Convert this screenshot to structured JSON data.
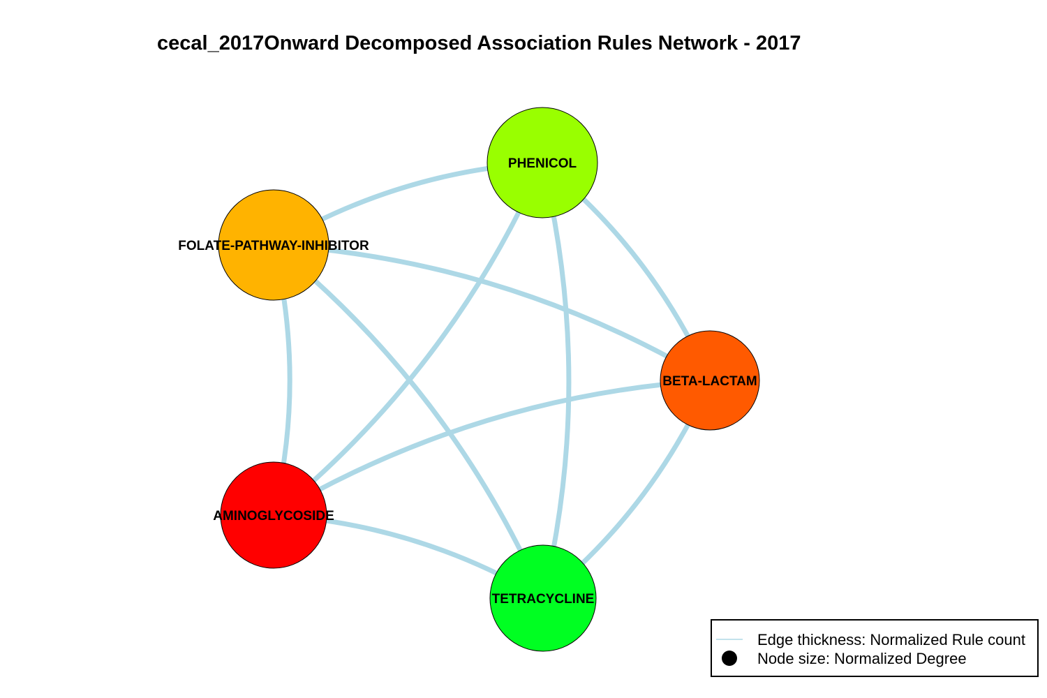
{
  "title": "cecal_2017Onward Decomposed Association Rules Network - 2017",
  "colors": {
    "edge": "#add8e6",
    "node_border": "#000000",
    "legend_border": "#000000"
  },
  "nodes": [
    {
      "id": "phenicol",
      "label": "PHENICOL",
      "color": "#99ff00"
    },
    {
      "id": "folate",
      "label": "FOLATE-PATHWAY-INHIBITOR",
      "color": "#ffb300"
    },
    {
      "id": "beta",
      "label": "BETA-LACTAM",
      "color": "#ff5a00"
    },
    {
      "id": "amino",
      "label": "AMINOGLYCOSIDE",
      "color": "#ff0000"
    },
    {
      "id": "tetra",
      "label": "TETRACYCLINE",
      "color": "#00ff22"
    }
  ],
  "edges": [
    {
      "from": "folate",
      "to": "phenicol"
    },
    {
      "from": "phenicol",
      "to": "beta"
    },
    {
      "from": "phenicol",
      "to": "tetra"
    },
    {
      "from": "phenicol",
      "to": "amino"
    },
    {
      "from": "folate",
      "to": "beta"
    },
    {
      "from": "folate",
      "to": "amino"
    },
    {
      "from": "folate",
      "to": "tetra"
    },
    {
      "from": "amino",
      "to": "beta"
    },
    {
      "from": "beta",
      "to": "tetra"
    },
    {
      "from": "amino",
      "to": "tetra"
    }
  ],
  "legend": {
    "edge_label": "Edge thickness: Normalized Rule count",
    "node_label": "Node size: Normalized Degree"
  }
}
